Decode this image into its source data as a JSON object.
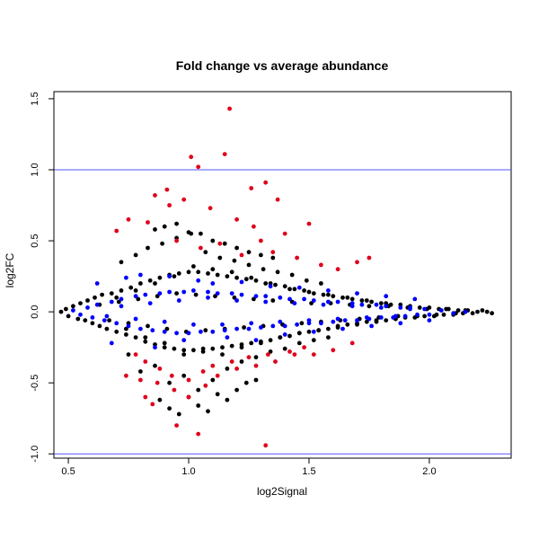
{
  "chart_data": {
    "type": "scatter",
    "title": "Fold change vs average abundance",
    "xlabel": "log2Signal",
    "ylabel": "log2FC",
    "xlim": [
      0.44,
      2.34
    ],
    "ylim": [
      -1.03,
      1.55
    ],
    "xticks": [
      0.5,
      1.0,
      1.5,
      2.0
    ],
    "xtick_labels": [
      "0.5",
      "1.0",
      "1.5",
      "2.0"
    ],
    "yticks": [
      -1.0,
      -0.5,
      0.0,
      0.5,
      1.0,
      1.5
    ],
    "ytick_labels": [
      "-1.0",
      "-0.5",
      "0.0",
      "0.5",
      "1.0",
      "1.5"
    ],
    "grid": false,
    "reference_lines": [
      {
        "axis": "y",
        "value": 1.0,
        "color": "#5555ff"
      },
      {
        "axis": "y",
        "value": -1.0,
        "color": "#5555ff"
      }
    ],
    "colors": {
      "not_significant": "#000000",
      "significant": "#e0001b",
      "highlighted": "#0000ff"
    },
    "series": [
      {
        "color": "#000000",
        "x": [
          0.47,
          0.49,
          0.5,
          0.52,
          0.54,
          0.55,
          0.57,
          0.58,
          0.6,
          0.61,
          0.63,
          0.64,
          0.66,
          0.68,
          0.7,
          0.72,
          0.74,
          0.76,
          0.78,
          0.8,
          0.82,
          0.84,
          0.86,
          0.88,
          0.9,
          0.92,
          0.94,
          0.96,
          0.98,
          1.0,
          1.02,
          1.04,
          1.06,
          1.08,
          1.1,
          1.12,
          1.14,
          1.16,
          1.18,
          1.2,
          1.22,
          1.24,
          1.26,
          1.28,
          1.3,
          1.32,
          1.34,
          1.36,
          1.38,
          1.4,
          1.42,
          1.44,
          1.46,
          1.48,
          1.5,
          1.52,
          1.54,
          1.56,
          1.58,
          1.6,
          1.62,
          1.64,
          1.66,
          1.68,
          1.7,
          1.72,
          1.74,
          1.76,
          1.78,
          1.8,
          1.82,
          1.84,
          1.86,
          1.88,
          1.9,
          1.92,
          1.94,
          1.96,
          1.98,
          2.0,
          2.02,
          2.04,
          2.06,
          2.08,
          2.1,
          2.12,
          2.14,
          2.16,
          2.18,
          2.2,
          2.22,
          2.24,
          2.26,
          0.72,
          0.75,
          0.78,
          0.8,
          0.83,
          0.86,
          0.89,
          0.92,
          0.95,
          0.98,
          1.01,
          1.04,
          1.07,
          1.1,
          1.13,
          1.16,
          1.19,
          1.22,
          1.25,
          1.28,
          1.31,
          1.34,
          1.37,
          1.4,
          1.43,
          1.46,
          1.49,
          1.52,
          1.55,
          1.58,
          0.7,
          0.74,
          0.78,
          0.82,
          0.86,
          0.9,
          0.94,
          0.98,
          1.02,
          1.06,
          1.1,
          1.14,
          1.18,
          1.22,
          1.26,
          1.3,
          1.34,
          1.38,
          1.42,
          1.46,
          1.5,
          1.54,
          1.58,
          1.62,
          1.66,
          1.7,
          1.74,
          1.78,
          1.82,
          1.86,
          0.88,
          0.92,
          0.96,
          1.0,
          1.04,
          1.08,
          1.12,
          1.16,
          1.2,
          1.24,
          1.28,
          0.86,
          0.9,
          0.95,
          1.0,
          1.05,
          1.1,
          1.15,
          1.2,
          1.25,
          1.3,
          1.35,
          0.63,
          0.67,
          0.71,
          0.75,
          0.79,
          0.83,
          0.87,
          0.91,
          0.95,
          0.99,
          1.03,
          1.07,
          1.11,
          1.15,
          1.19,
          1.23,
          1.27,
          1.31,
          1.35,
          1.39,
          1.43,
          1.47,
          1.51,
          1.55,
          1.59,
          1.63,
          1.67,
          1.71,
          1.75,
          1.79,
          1.83,
          1.87,
          1.91,
          1.95,
          1.99,
          2.03,
          2.07,
          2.11,
          2.15
        ],
        "y": [
          0.0,
          0.02,
          -0.03,
          0.04,
          -0.05,
          0.06,
          -0.06,
          0.08,
          -0.08,
          0.1,
          -0.1,
          0.12,
          -0.12,
          0.13,
          -0.14,
          0.15,
          -0.16,
          0.17,
          -0.18,
          0.2,
          -0.21,
          0.22,
          -0.23,
          0.24,
          -0.25,
          0.26,
          -0.26,
          0.27,
          -0.27,
          0.28,
          -0.27,
          0.28,
          -0.26,
          0.27,
          -0.26,
          0.26,
          -0.25,
          0.25,
          -0.24,
          0.24,
          -0.23,
          0.23,
          -0.22,
          0.22,
          -0.21,
          0.2,
          -0.2,
          0.19,
          -0.18,
          0.18,
          -0.17,
          0.16,
          -0.15,
          0.15,
          -0.14,
          0.13,
          -0.13,
          0.12,
          -0.12,
          0.11,
          -0.1,
          0.1,
          -0.09,
          0.09,
          -0.08,
          0.08,
          -0.07,
          0.07,
          -0.06,
          0.06,
          -0.06,
          0.05,
          -0.05,
          0.05,
          -0.04,
          0.04,
          -0.04,
          0.03,
          -0.03,
          0.03,
          -0.03,
          0.02,
          -0.02,
          0.02,
          -0.02,
          0.01,
          -0.01,
          0.01,
          -0.01,
          0.0,
          0.01,
          0.0,
          -0.01,
          0.35,
          -0.3,
          0.4,
          -0.42,
          0.45,
          -0.38,
          0.48,
          -0.5,
          0.52,
          -0.45,
          0.55,
          -0.55,
          0.42,
          -0.48,
          0.38,
          -0.4,
          0.36,
          -0.35,
          0.33,
          -0.32,
          0.3,
          -0.28,
          0.28,
          -0.26,
          0.26,
          -0.22,
          0.22,
          -0.2,
          0.2,
          -0.18,
          0.1,
          -0.12,
          0.15,
          -0.18,
          0.2,
          -0.22,
          0.25,
          -0.3,
          0.32,
          -0.28,
          0.3,
          -0.3,
          0.28,
          -0.25,
          0.24,
          -0.22,
          0.2,
          -0.18,
          0.16,
          -0.15,
          0.14,
          -0.13,
          0.12,
          -0.11,
          0.1,
          -0.09,
          0.08,
          -0.07,
          0.06,
          -0.05,
          -0.62,
          -0.68,
          -0.72,
          -0.6,
          -0.66,
          -0.7,
          -0.58,
          -0.62,
          -0.55,
          -0.5,
          -0.48,
          0.58,
          0.6,
          0.62,
          0.56,
          0.55,
          0.5,
          0.48,
          0.45,
          0.42,
          0.4,
          0.38,
          0.05,
          -0.06,
          0.07,
          -0.08,
          0.09,
          -0.1,
          0.11,
          -0.12,
          0.13,
          -0.14,
          0.12,
          -0.13,
          0.11,
          -0.12,
          0.1,
          -0.11,
          0.09,
          -0.1,
          0.08,
          -0.09,
          0.07,
          -0.08,
          0.06,
          -0.07,
          0.06,
          -0.06,
          0.05,
          -0.05,
          0.04,
          -0.04,
          0.04,
          -0.03,
          0.03,
          -0.03,
          0.02,
          -0.02,
          0.02,
          -0.01,
          0.01
        ]
      },
      {
        "color": "#0000ff",
        "x": [
          0.52,
          0.55,
          0.58,
          0.6,
          0.62,
          0.65,
          0.68,
          0.7,
          0.72,
          0.75,
          0.78,
          0.8,
          0.82,
          0.85,
          0.88,
          0.9,
          0.92,
          0.95,
          0.98,
          1.0,
          1.02,
          1.05,
          1.08,
          1.1,
          1.12,
          1.15,
          1.18,
          1.2,
          1.22,
          1.25,
          1.28,
          1.3,
          1.32,
          1.35,
          1.38,
          1.4,
          1.42,
          1.45,
          1.48,
          1.5,
          1.52,
          1.55,
          1.58,
          1.6,
          1.62,
          1.65,
          1.68,
          1.7,
          1.72,
          1.75,
          1.78,
          1.8,
          1.82,
          1.85,
          1.88,
          1.9,
          1.92,
          1.95,
          1.98,
          2.0,
          2.05,
          2.1,
          2.15,
          0.62,
          0.68,
          0.74,
          0.8,
          0.86,
          0.92,
          0.98,
          1.04,
          1.1,
          1.16,
          1.22,
          1.28,
          1.34,
          1.4,
          1.46,
          1.52,
          1.58,
          1.64,
          1.7,
          1.76,
          1.82,
          1.88,
          1.94,
          2.0,
          0.66,
          0.72,
          0.78,
          0.84,
          0.9,
          0.96,
          1.02,
          1.08,
          1.14,
          1.2,
          1.26,
          1.32,
          1.38,
          1.44,
          1.5,
          1.56,
          1.62,
          1.68,
          1.74,
          1.8,
          1.86,
          1.92
        ],
        "y": [
          0.01,
          -0.02,
          0.03,
          -0.04,
          0.05,
          -0.06,
          0.07,
          -0.08,
          0.09,
          -0.1,
          0.11,
          -0.12,
          0.12,
          -0.13,
          0.13,
          -0.14,
          0.14,
          -0.15,
          0.14,
          -0.15,
          0.15,
          -0.14,
          0.14,
          -0.14,
          0.13,
          -0.13,
          0.13,
          -0.12,
          0.12,
          -0.12,
          0.11,
          -0.11,
          0.11,
          -0.1,
          0.1,
          -0.1,
          0.09,
          -0.09,
          0.09,
          -0.08,
          0.08,
          -0.08,
          0.07,
          -0.07,
          0.07,
          -0.06,
          0.06,
          -0.06,
          0.05,
          -0.05,
          0.05,
          -0.04,
          0.04,
          -0.04,
          0.03,
          -0.03,
          0.03,
          -0.02,
          0.02,
          -0.02,
          0.01,
          -0.01,
          0.0,
          0.2,
          -0.22,
          0.24,
          0.26,
          -0.25,
          0.25,
          -0.2,
          0.22,
          0.2,
          -0.18,
          0.21,
          -0.2,
          0.18,
          -0.16,
          0.17,
          -0.14,
          0.15,
          -0.12,
          0.13,
          -0.1,
          0.11,
          -0.08,
          0.09,
          -0.06,
          -0.03,
          0.04,
          -0.05,
          0.06,
          -0.07,
          0.08,
          -0.09,
          0.1,
          -0.09,
          0.08,
          -0.08,
          0.07,
          -0.07,
          0.06,
          -0.06,
          0.05,
          -0.05,
          0.04,
          -0.04,
          0.03,
          -0.03,
          0.02
        ]
      },
      {
        "color": "#e0001b",
        "x": [
          1.17,
          1.15,
          1.01,
          1.04,
          1.32,
          1.26,
          1.37,
          0.86,
          0.91,
          0.98,
          1.09,
          0.75,
          0.83,
          0.7,
          0.92,
          1.2,
          1.27,
          1.4,
          1.5,
          1.3,
          0.95,
          1.05,
          1.13,
          1.22,
          1.35,
          1.45,
          1.55,
          1.62,
          1.7,
          1.75,
          0.78,
          0.82,
          0.88,
          0.93,
          1.0,
          1.06,
          1.1,
          1.18,
          1.25,
          1.33,
          1.42,
          1.48,
          1.52,
          1.6,
          1.68,
          0.74,
          0.8,
          0.87,
          0.94,
          1.0,
          1.07,
          1.12,
          1.2,
          1.28,
          1.36,
          1.44,
          0.95,
          1.04,
          1.32,
          0.82,
          0.85
        ],
        "y": [
          1.43,
          1.11,
          1.09,
          1.02,
          0.91,
          0.87,
          0.79,
          0.82,
          0.86,
          0.79,
          0.73,
          0.65,
          0.63,
          0.57,
          0.75,
          0.65,
          0.6,
          0.55,
          0.62,
          0.5,
          0.5,
          0.45,
          0.48,
          0.4,
          0.42,
          0.38,
          0.33,
          0.3,
          0.35,
          0.38,
          -0.3,
          -0.35,
          -0.4,
          -0.45,
          -0.48,
          -0.42,
          -0.38,
          -0.35,
          -0.32,
          -0.3,
          -0.28,
          -0.25,
          -0.3,
          -0.27,
          -0.22,
          -0.45,
          -0.48,
          -0.5,
          -0.55,
          -0.6,
          -0.52,
          -0.45,
          -0.4,
          -0.38,
          -0.35,
          -0.3,
          -0.8,
          -0.86,
          -0.94,
          -0.6,
          -0.65
        ]
      }
    ]
  }
}
